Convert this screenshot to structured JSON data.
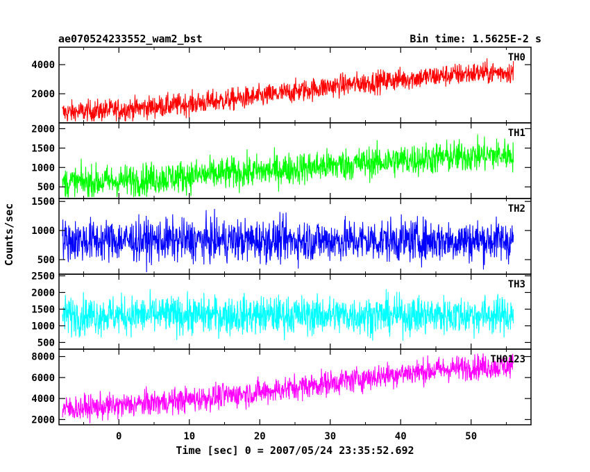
{
  "header": {
    "left_title": "ae070524233552_wam2_bst",
    "right_title": "Bin time: 1.5625E-2 s"
  },
  "chart_data": {
    "type": "line",
    "xlabel": "Time [sec] 0 = 2007/05/24 23:35:52.692",
    "ylabel": "Counts/sec",
    "xlim": [
      -8.5,
      58.5
    ],
    "x_ticks": [
      0,
      10,
      20,
      30,
      40,
      50
    ],
    "x_tick_labels": [
      "0",
      "10",
      "20",
      "30",
      "40",
      "50"
    ],
    "x_data_range": [
      -8,
      56
    ],
    "bin_time": 0.015625,
    "panels": [
      {
        "name": "TH0",
        "color": "#ff0000",
        "ylim": [
          0,
          5200
        ],
        "y_ticks": [
          2000,
          4000
        ],
        "y_tick_labels": [
          "2000",
          "4000"
        ],
        "trend": [
          {
            "x": -8,
            "y": 700
          },
          {
            "x": 0,
            "y": 900
          },
          {
            "x": 10,
            "y": 1300
          },
          {
            "x": 20,
            "y": 1800
          },
          {
            "x": 30,
            "y": 2500
          },
          {
            "x": 40,
            "y": 3000
          },
          {
            "x": 50,
            "y": 3400
          },
          {
            "x": 56,
            "y": 3500
          }
        ],
        "spread": 700
      },
      {
        "name": "TH1",
        "color": "#00ff00",
        "ylim": [
          200,
          2150
        ],
        "y_ticks": [
          500,
          1000,
          1500,
          2000
        ],
        "y_tick_labels": [
          "500",
          "1000",
          "1500",
          "2000"
        ],
        "trend": [
          {
            "x": -8,
            "y": 600
          },
          {
            "x": 0,
            "y": 650
          },
          {
            "x": 10,
            "y": 780
          },
          {
            "x": 20,
            "y": 900
          },
          {
            "x": 30,
            "y": 1050
          },
          {
            "x": 40,
            "y": 1180
          },
          {
            "x": 50,
            "y": 1300
          },
          {
            "x": 56,
            "y": 1330
          }
        ],
        "spread": 380
      },
      {
        "name": "TH2",
        "color": "#0000ff",
        "ylim": [
          250,
          1550
        ],
        "y_ticks": [
          500,
          1000,
          1500
        ],
        "y_tick_labels": [
          "500",
          "1000",
          "1500"
        ],
        "trend": [
          {
            "x": -8,
            "y": 830
          },
          {
            "x": 56,
            "y": 830
          }
        ],
        "spread": 330
      },
      {
        "name": "TH3",
        "color": "#00ffff",
        "ylim": [
          300,
          2550
        ],
        "y_ticks": [
          500,
          1000,
          1500,
          2000,
          2500
        ],
        "y_tick_labels": [
          "500",
          "1000",
          "1500",
          "2000",
          "2500"
        ],
        "trend": [
          {
            "x": -8,
            "y": 1320
          },
          {
            "x": 56,
            "y": 1320
          }
        ],
        "spread": 520
      },
      {
        "name": "TH0123",
        "color": "#ff00ff",
        "ylim": [
          1500,
          8700
        ],
        "y_ticks": [
          2000,
          4000,
          6000,
          8000
        ],
        "y_tick_labels": [
          "2000",
          "4000",
          "6000",
          "8000"
        ],
        "trend": [
          {
            "x": -8,
            "y": 3000
          },
          {
            "x": 0,
            "y": 3300
          },
          {
            "x": 10,
            "y": 3900
          },
          {
            "x": 20,
            "y": 4600
          },
          {
            "x": 30,
            "y": 5500
          },
          {
            "x": 40,
            "y": 6400
          },
          {
            "x": 50,
            "y": 7000
          },
          {
            "x": 56,
            "y": 7100
          }
        ],
        "spread": 1100
      }
    ]
  }
}
